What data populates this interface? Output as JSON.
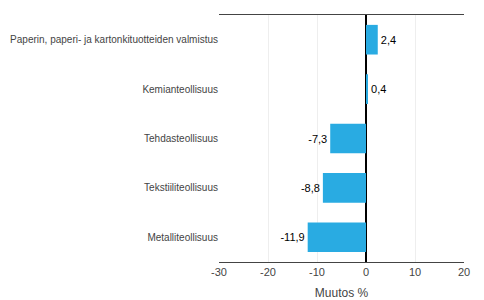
{
  "chart_data": {
    "type": "bar",
    "orientation": "horizontal",
    "categories": [
      "Metalliteollisuus",
      "Tekstiiliteollisuus",
      "Tehdasteollisuus",
      "Kemianteollisuus",
      "Paperin, paperi- ja kartonkituotteiden valmistus"
    ],
    "values": [
      -11.9,
      -8.8,
      -7.3,
      0.4,
      2.4
    ],
    "value_labels": [
      "-11,9",
      "-8,8",
      "-7,3",
      "0,4",
      "2,4"
    ],
    "data_labels": true,
    "color": "#29abe2",
    "xlabel": "Muutos %",
    "xlim": [
      -30,
      20
    ],
    "xticks": [
      -30,
      -20,
      -10,
      0,
      10,
      20
    ],
    "grid": true
  }
}
